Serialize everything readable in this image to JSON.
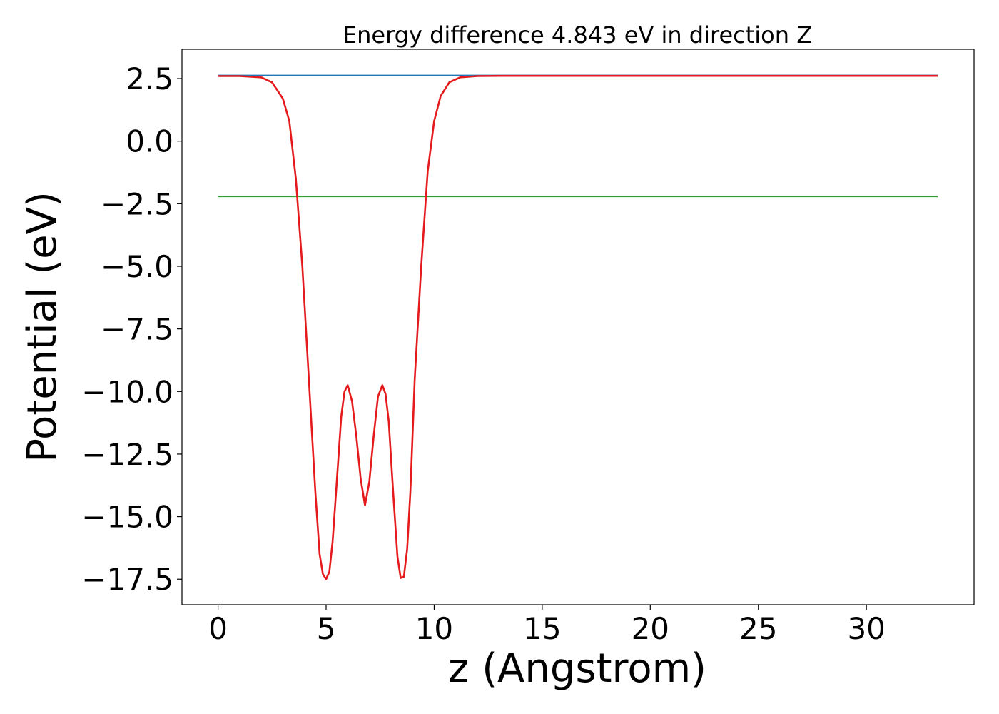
{
  "chart_data": {
    "type": "line",
    "title": "Energy difference 4.843 eV in direction Z",
    "xlabel": "z (Angstrom)",
    "ylabel": "Potential (eV)",
    "xlim": [
      -1.67,
      34.98
    ],
    "ylim": [
      -18.52,
      3.67
    ],
    "xticks": [
      0,
      5,
      10,
      15,
      20,
      25,
      30
    ],
    "xtick_labels": [
      "0",
      "5",
      "10",
      "15",
      "20",
      "25",
      "30"
    ],
    "yticks": [
      2.5,
      0.0,
      -2.5,
      -5.0,
      -7.5,
      -10.0,
      -12.5,
      -15.0,
      -17.5
    ],
    "ytick_labels": [
      "2.5",
      "0.0",
      "−2.5",
      "−5.0",
      "−7.5",
      "−10.0",
      "−12.5",
      "−15.0",
      "−17.5"
    ],
    "grid": false,
    "legend": "none",
    "series": [
      {
        "color": "#1f77b4",
        "x": [
          0,
          33.3
        ],
        "y": [
          2.63,
          2.63
        ]
      },
      {
        "color": "#2ca02c",
        "x": [
          0,
          33.3
        ],
        "y": [
          -2.21,
          -2.21
        ]
      },
      {
        "color": "#9467bd",
        "x": [
          12.0,
          33.3
        ],
        "y": [
          2.61,
          2.61
        ]
      },
      {
        "color": "#e41a1c",
        "x": [
          0.0,
          1.0,
          2.0,
          2.5,
          3.0,
          3.3,
          3.6,
          3.9,
          4.2,
          4.5,
          4.7,
          4.85,
          5.0,
          5.15,
          5.3,
          5.5,
          5.7,
          5.85,
          6.0,
          6.2,
          6.4,
          6.6,
          6.8,
          7.0,
          7.2,
          7.4,
          7.6,
          7.75,
          7.9,
          8.1,
          8.3,
          8.45,
          8.6,
          8.75,
          8.9,
          9.1,
          9.4,
          9.7,
          10.0,
          10.3,
          10.7,
          11.2,
          12.0,
          13.0,
          15.0,
          20.0,
          25.0,
          30.0,
          33.3
        ],
        "y": [
          2.6,
          2.6,
          2.55,
          2.35,
          1.7,
          0.8,
          -1.5,
          -5.0,
          -9.5,
          -14.0,
          -16.5,
          -17.3,
          -17.5,
          -17.2,
          -16.0,
          -13.5,
          -11.0,
          -10.0,
          -9.75,
          -10.4,
          -11.8,
          -13.5,
          -14.55,
          -13.6,
          -11.8,
          -10.2,
          -9.75,
          -10.1,
          -11.2,
          -14.0,
          -16.6,
          -17.45,
          -17.4,
          -16.3,
          -14.0,
          -9.5,
          -5.0,
          -1.2,
          0.8,
          1.8,
          2.35,
          2.55,
          2.6,
          2.61,
          2.61,
          2.61,
          2.61,
          2.61,
          2.61
        ]
      }
    ]
  }
}
